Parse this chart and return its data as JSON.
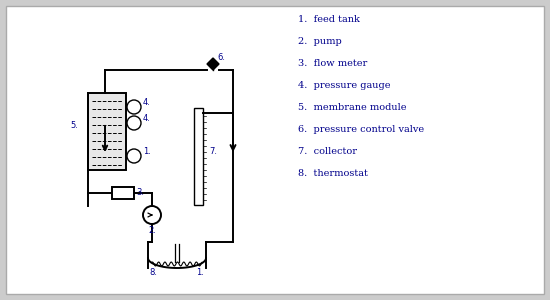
{
  "bg_color": "#cccccc",
  "panel_color": "#ffffff",
  "line_color": "#000000",
  "label_color": "#00008b",
  "legend_items": [
    "1.  feed tank",
    "2.  pump",
    "3.  flow meter",
    "4.  pressure gauge",
    "5.  membrane module",
    "6.  pressure control valve",
    "7.  collector",
    "8.  thermostat"
  ],
  "legend_fontsize": 7.0,
  "pg_r": 7,
  "lw_main": 1.4,
  "lw_thin": 1.0
}
